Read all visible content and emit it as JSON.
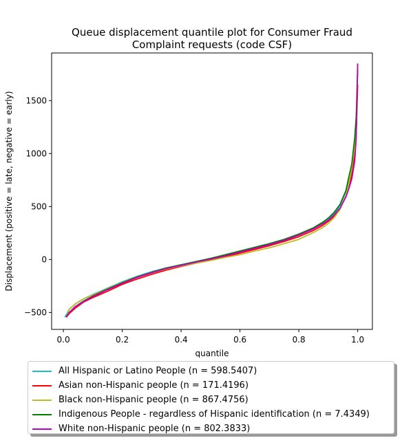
{
  "chart_data": {
    "type": "line",
    "title_line1": "Queue displacement quantile plot for Consumer Fraud",
    "title_line2": "Complaint  requests (code CSF)",
    "xlabel": "quantile",
    "ylabel": "Displacement (positive = late, negative = early)",
    "xlim": [
      -0.04,
      1.05
    ],
    "ylim": [
      -660,
      1950
    ],
    "xticks": [
      0.0,
      0.2,
      0.4,
      0.6,
      0.8,
      1.0
    ],
    "xtick_labels": [
      "0.0",
      "0.2",
      "0.4",
      "0.6",
      "0.8",
      "1.0"
    ],
    "yticks": [
      -500,
      0,
      500,
      1000,
      1500
    ],
    "ytick_labels": [
      "−500",
      "0",
      "500",
      "1000",
      "1500"
    ],
    "grid": false,
    "legend_position": "below",
    "series": [
      {
        "name": "All Hispanic or Latino People (n = 598.5407)",
        "color": "#17becf",
        "x": [
          0.005,
          0.01,
          0.02,
          0.04,
          0.07,
          0.1,
          0.15,
          0.2,
          0.25,
          0.3,
          0.35,
          0.4,
          0.45,
          0.5,
          0.55,
          0.6,
          0.65,
          0.7,
          0.75,
          0.8,
          0.85,
          0.88,
          0.9,
          0.92,
          0.94,
          0.96,
          0.97,
          0.98,
          0.99,
          0.995,
          1.0
        ],
        "y": [
          -545,
          -520,
          -470,
          -420,
          -370,
          -330,
          -270,
          -210,
          -160,
          -115,
          -80,
          -50,
          -20,
          10,
          40,
          75,
          110,
          145,
          185,
          230,
          290,
          340,
          380,
          430,
          510,
          640,
          730,
          850,
          1050,
          1300,
          1800
        ]
      },
      {
        "name": "Asian non-Hispanic people (n = 171.4196)",
        "color": "#ff0000",
        "x": [
          0.01,
          0.02,
          0.04,
          0.07,
          0.1,
          0.15,
          0.2,
          0.25,
          0.3,
          0.35,
          0.4,
          0.45,
          0.5,
          0.55,
          0.6,
          0.65,
          0.7,
          0.75,
          0.8,
          0.85,
          0.88,
          0.9,
          0.92,
          0.94,
          0.96,
          0.97,
          0.98,
          0.99,
          0.995,
          1.0
        ],
        "y": [
          -545,
          -510,
          -460,
          -400,
          -360,
          -300,
          -235,
          -185,
          -140,
          -100,
          -65,
          -35,
          -5,
          25,
          60,
          95,
          130,
          170,
          215,
          275,
          320,
          360,
          410,
          480,
          600,
          690,
          800,
          1000,
          1200,
          1650
        ]
      },
      {
        "name": "Black non-Hispanic people (n = 867.4756)",
        "color": "#bcbd22",
        "x": [
          0.01,
          0.02,
          0.04,
          0.07,
          0.1,
          0.15,
          0.2,
          0.25,
          0.3,
          0.35,
          0.4,
          0.45,
          0.5,
          0.55,
          0.6,
          0.65,
          0.7,
          0.75,
          0.8,
          0.85,
          0.88,
          0.9,
          0.92,
          0.94,
          0.96,
          0.97,
          0.98,
          0.99,
          0.995,
          1.0
        ],
        "y": [
          -540,
          -470,
          -420,
          -370,
          -335,
          -275,
          -215,
          -165,
          -125,
          -90,
          -60,
          -35,
          -10,
          20,
          45,
          80,
          110,
          150,
          190,
          255,
          300,
          340,
          395,
          470,
          600,
          720,
          860,
          1060,
          1300,
          1850
        ]
      },
      {
        "name": "Indigenous People - regardless of Hispanic identification (n = 7.4349)",
        "color": "#008000",
        "x": [
          0.01,
          0.02,
          0.04,
          0.07,
          0.1,
          0.15,
          0.2,
          0.25,
          0.3,
          0.35,
          0.4,
          0.45,
          0.5,
          0.55,
          0.6,
          0.65,
          0.7,
          0.75,
          0.8,
          0.85,
          0.88,
          0.9,
          0.92,
          0.94,
          0.96,
          0.97,
          0.98,
          0.99,
          0.995,
          1.0
        ],
        "y": [
          -540,
          -500,
          -445,
          -390,
          -345,
          -280,
          -220,
          -165,
          -120,
          -80,
          -50,
          -20,
          10,
          45,
          80,
          115,
          150,
          190,
          240,
          300,
          350,
          390,
          445,
          520,
          650,
          780,
          900,
          1150,
          1350,
          1800
        ]
      },
      {
        "name": "White non-Hispanic people (n = 802.3833)",
        "color": "#bf00bf",
        "x": [
          0.01,
          0.02,
          0.04,
          0.07,
          0.1,
          0.15,
          0.2,
          0.25,
          0.3,
          0.35,
          0.4,
          0.45,
          0.5,
          0.55,
          0.6,
          0.65,
          0.7,
          0.75,
          0.8,
          0.85,
          0.88,
          0.9,
          0.92,
          0.94,
          0.96,
          0.97,
          0.98,
          0.99,
          0.995,
          1.0
        ],
        "y": [
          -545,
          -500,
          -445,
          -395,
          -350,
          -285,
          -225,
          -170,
          -125,
          -85,
          -55,
          -25,
          5,
          35,
          70,
          105,
          140,
          180,
          230,
          290,
          335,
          370,
          420,
          485,
          590,
          670,
          760,
          930,
          1150,
          1850
        ]
      }
    ]
  }
}
